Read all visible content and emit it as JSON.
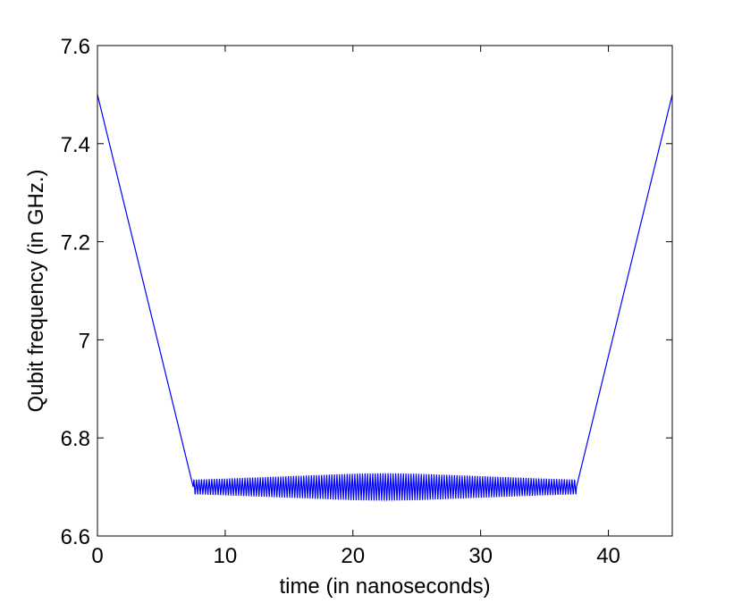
{
  "chart_data": {
    "type": "line",
    "title": "",
    "xlabel": "time (in nanoseconds)",
    "ylabel": "Qubit frequency (in GHz.)",
    "xlim": [
      0,
      45
    ],
    "ylim": [
      6.6,
      7.6
    ],
    "x_ticks": [
      "0",
      "10",
      "20",
      "30",
      "40"
    ],
    "y_ticks": [
      "6.6",
      "6.8",
      "7",
      "7.2",
      "7.4",
      "7.6"
    ],
    "grid": false,
    "legend": "none",
    "series": [
      {
        "color": "#0000ff",
        "ramp_down": {
          "x": [
            0,
            7.5
          ],
          "y": [
            7.5,
            6.7
          ]
        },
        "oscillation": {
          "x_start": 7.5,
          "x_end": 37.5,
          "center": 6.7,
          "period_ns": 0.2,
          "envelope": {
            "x": [
              7.5,
              10,
              15,
              20,
              22.5,
              25,
              30,
              35,
              37.5
            ],
            "amplitude": [
              0.015,
              0.017,
              0.022,
              0.027,
              0.028,
              0.027,
              0.022,
              0.017,
              0.015
            ]
          }
        },
        "ramp_up": {
          "x": [
            37.5,
            45
          ],
          "y": [
            6.7,
            7.5
          ]
        }
      }
    ]
  }
}
